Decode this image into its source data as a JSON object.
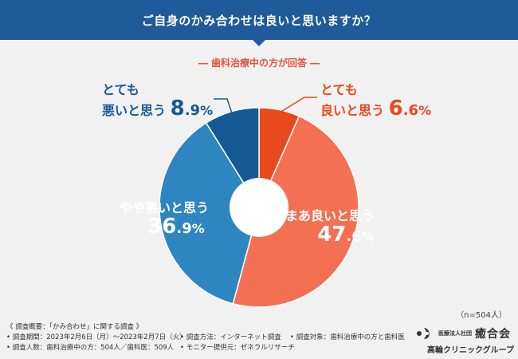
{
  "header": {
    "title": "ご自身のかみ合わせは良いと思いますか？"
  },
  "chart_data": {
    "type": "pie",
    "title": "ご自身のかみ合わせは良いと思いますか？",
    "subtitle": "― 歯科治療中の方が回答 ―",
    "slices": [
      {
        "name": "とても良いと思う",
        "name_lines": [
          "とても",
          "良いと思う"
        ],
        "value": 6.6,
        "int": "6",
        "dec": ".6",
        "color": "#e8491d"
      },
      {
        "name": "まあ良いと思う",
        "name_lines": [
          "まあ良いと思う"
        ],
        "value": 47.6,
        "int": "47",
        "dec": ".6",
        "color": "#f37052"
      },
      {
        "name": "やや悪いと思う",
        "name_lines": [
          "やや悪いと思う"
        ],
        "value": 36.9,
        "int": "36",
        "dec": ".9",
        "color": "#2e86c1"
      },
      {
        "name": "とても悪いと思う",
        "name_lines": [
          "とても",
          "悪いと思う"
        ],
        "value": 8.9,
        "int": "8",
        "dec": ".9",
        "color": "#155a96"
      }
    ],
    "unit": "%",
    "n_note": "（n=504人）"
  },
  "footer": {
    "line1": "《 調査概要：「かみ合わせ」に関する調査 》",
    "line2a": "• 調査期間：2023年2月6日（月）～2023年2月7日（火）",
    "line2b": "• 調査方法：インターネット調査",
    "line2c": "• 調査対象：歯科治療中の方と歯科医",
    "line3a": "• 調査人数：歯科治療中の方：504人／歯科医：509人",
    "line3b": "• モニター提供元：ゼネラルリサーチ"
  },
  "logo": {
    "org": "医療法人社団",
    "brand": "癒合会",
    "group": "高輪クリニックグループ"
  }
}
